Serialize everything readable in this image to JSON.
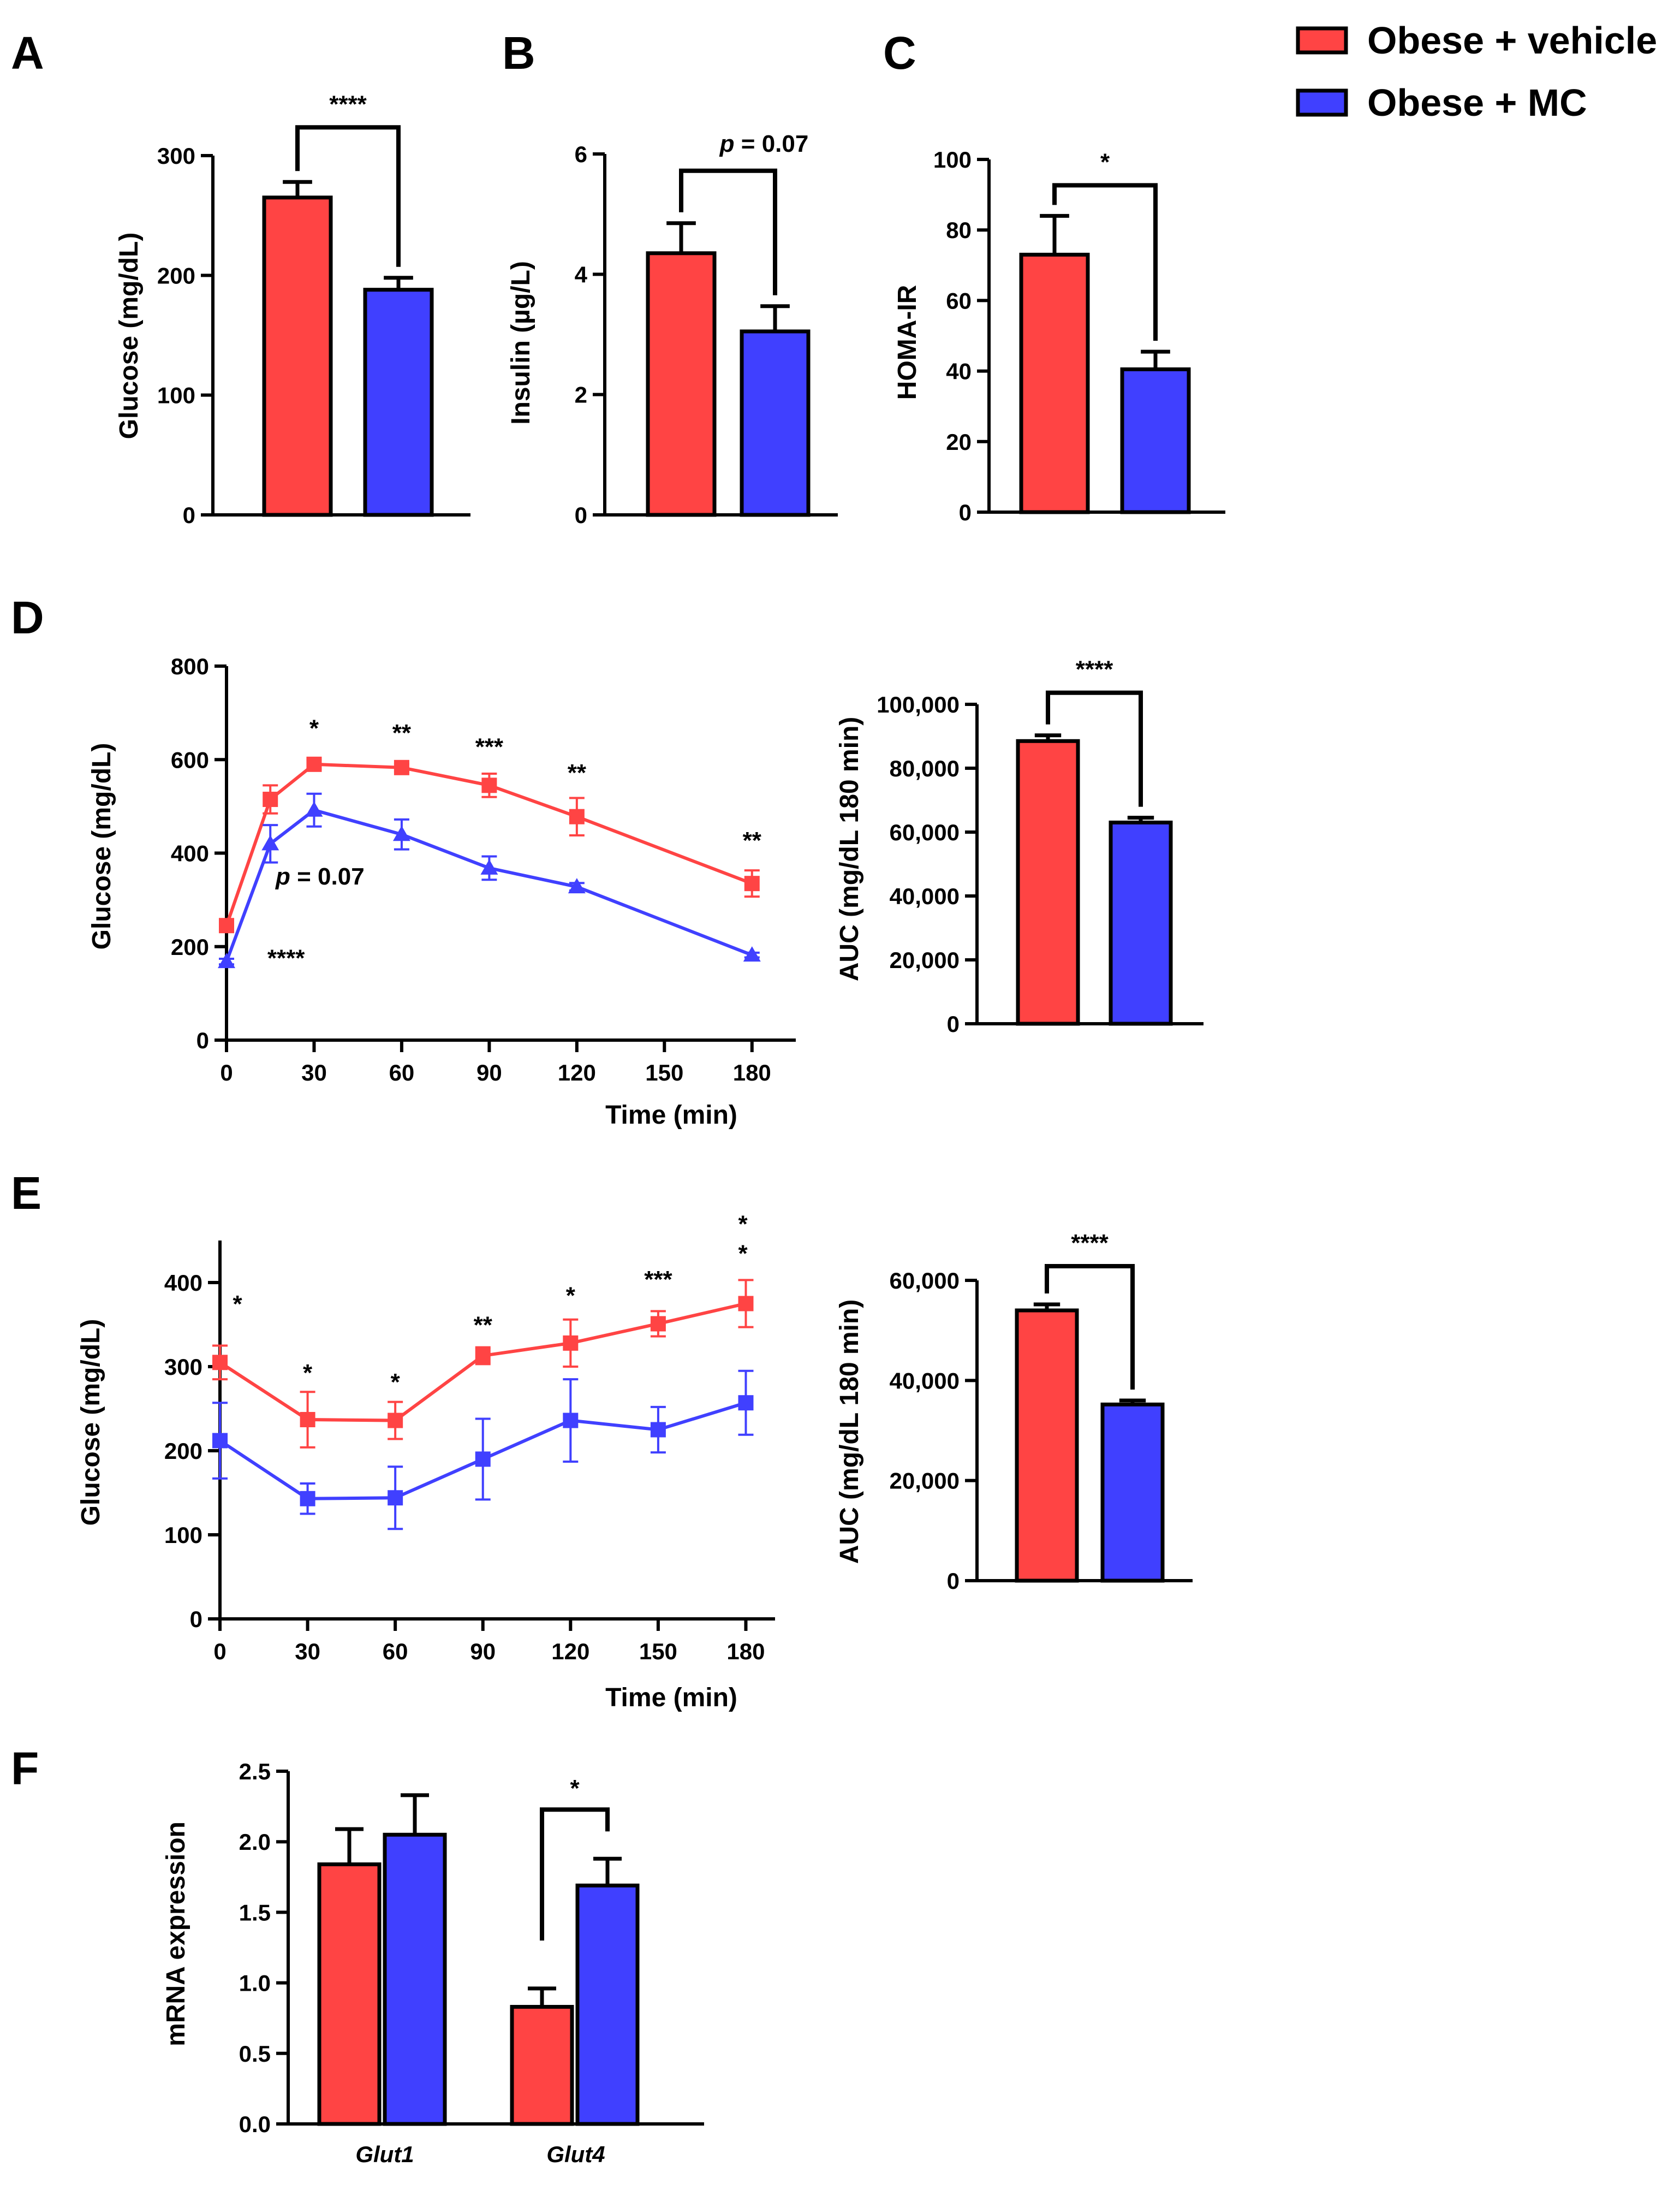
{
  "colors": {
    "vehicle": "#ff4444",
    "mc": "#4040ff",
    "axis": "#000000"
  },
  "legend": {
    "entries": [
      {
        "label": "Obese + vehicle",
        "color": "#ff4444"
      },
      {
        "label": "Obese + MC",
        "color": "#4040ff"
      }
    ]
  },
  "chart_data": [
    {
      "id": "A",
      "panel_label": "A",
      "type": "bar",
      "ylabel": "Glucose (mg/dL)",
      "ylim": [
        0,
        300
      ],
      "yticks": [
        0,
        100,
        200,
        300
      ],
      "tick_labels": [
        "0",
        "100",
        "200",
        "300"
      ],
      "series": [
        {
          "name": "Obese + vehicle",
          "value": 265,
          "error": 13
        },
        {
          "name": "Obese + MC",
          "value": 188,
          "error": 10
        }
      ],
      "significance": "****"
    },
    {
      "id": "B",
      "panel_label": "B",
      "type": "bar",
      "ylabel": "Insulin (µg/L)",
      "ylim": [
        0,
        6
      ],
      "yticks": [
        0,
        2,
        4,
        6
      ],
      "tick_labels": [
        "0",
        "2",
        "4",
        "6"
      ],
      "series": [
        {
          "name": "Obese + vehicle",
          "value": 4.35,
          "error": 0.5
        },
        {
          "name": "Obese + MC",
          "value": 3.05,
          "error": 0.42
        }
      ],
      "significance_p": "p",
      "significance": " = 0.07"
    },
    {
      "id": "C",
      "panel_label": "C",
      "type": "bar",
      "ylabel": "HOMA-IR",
      "ylim": [
        0,
        100
      ],
      "yticks": [
        0,
        20,
        40,
        60,
        80,
        100
      ],
      "tick_labels": [
        "0",
        "20",
        "40",
        "60",
        "80",
        "100"
      ],
      "series": [
        {
          "name": "Obese + vehicle",
          "value": 73,
          "error": 11
        },
        {
          "name": "Obese + MC",
          "value": 40.5,
          "error": 5
        }
      ],
      "significance": "*"
    },
    {
      "id": "D-curve",
      "panel_label": "D",
      "type": "line",
      "ylabel": "Glucose (mg/dL)",
      "xlabel": "Time (min)",
      "xlim": [
        0,
        195
      ],
      "ylim": [
        0,
        800
      ],
      "xticks": [
        0,
        30,
        60,
        90,
        120,
        150,
        180
      ],
      "x_tick_labels": [
        "0",
        "30",
        "60",
        "90",
        "120",
        "150",
        "180"
      ],
      "yticks": [
        0,
        200,
        400,
        600,
        800
      ],
      "tick_labels": [
        "0",
        "200",
        "400",
        "600",
        "800"
      ],
      "series": [
        {
          "name": "Obese + vehicle",
          "marker": "square",
          "x": [
            0,
            15,
            30,
            60,
            90,
            120,
            180
          ],
          "y": [
            245,
            515,
            590,
            583,
            545,
            478,
            335
          ],
          "err": [
            8,
            30,
            10,
            8,
            25,
            40,
            28
          ]
        },
        {
          "name": "Obese + MC",
          "marker": "triangle",
          "x": [
            0,
            15,
            30,
            60,
            90,
            120,
            180
          ],
          "y": [
            168,
            420,
            492,
            440,
            368,
            328,
            182
          ],
          "err": [
            6,
            40,
            35,
            32,
            25,
            8,
            5
          ]
        }
      ],
      "annotations": [
        {
          "text": "*",
          "x": 30,
          "y": 650
        },
        {
          "text": "**",
          "x": 60,
          "y": 640
        },
        {
          "text": "***",
          "x": 90,
          "y": 610
        },
        {
          "text": "**",
          "x": 120,
          "y": 555
        },
        {
          "text": "**",
          "x": 180,
          "y": 410
        },
        {
          "text": "****",
          "x": 14,
          "y": 158
        }
      ],
      "p_annotation": {
        "p": "p",
        "rest": " = 0.07",
        "x": 17,
        "y": 345
      }
    },
    {
      "id": "D-auc",
      "type": "bar",
      "ylabel": "AUC (mg/dL 180 min)",
      "ylim": [
        0,
        100000
      ],
      "yticks": [
        0,
        20000,
        40000,
        60000,
        80000,
        100000
      ],
      "tick_labels": [
        "0",
        "20,000",
        "40,000",
        "60,000",
        "80,000",
        "100,000"
      ],
      "series": [
        {
          "name": "Obese + vehicle",
          "value": 88500,
          "error": 1800
        },
        {
          "name": "Obese + MC",
          "value": 63000,
          "error": 1500
        }
      ],
      "significance": "****"
    },
    {
      "id": "E-curve",
      "panel_label": "E",
      "type": "line",
      "ylabel": "Glucose (mg/dL)",
      "xlabel": "Time (min)",
      "xlim": [
        0,
        190
      ],
      "ylim": [
        0,
        450
      ],
      "xticks": [
        0,
        30,
        60,
        90,
        120,
        150,
        180
      ],
      "x_tick_labels": [
        "0",
        "30",
        "60",
        "90",
        "120",
        "150",
        "180"
      ],
      "yticks": [
        0,
        100,
        200,
        300,
        400
      ],
      "tick_labels": [
        "0",
        "100",
        "200",
        "300",
        "400"
      ],
      "series": [
        {
          "name": "Obese + vehicle",
          "marker": "square",
          "x": [
            0,
            30,
            60,
            90,
            120,
            150,
            180
          ],
          "y": [
            305,
            237,
            236,
            313,
            328,
            351,
            375
          ],
          "err": [
            20,
            33,
            22,
            10,
            28,
            15,
            28
          ]
        },
        {
          "name": "Obese + MC",
          "marker": "square",
          "x": [
            0,
            30,
            60,
            90,
            120,
            150,
            180
          ],
          "y": [
            212,
            143,
            144,
            190,
            236,
            225,
            257
          ],
          "err": [
            45,
            18,
            37,
            48,
            49,
            27,
            38
          ]
        }
      ],
      "annotations": [
        {
          "text": "*",
          "x": 6,
          "y": 365
        },
        {
          "text": "*",
          "x": 30,
          "y": 283
        },
        {
          "text": "*",
          "x": 60,
          "y": 272
        },
        {
          "text": "**",
          "x": 90,
          "y": 340
        },
        {
          "text": "*",
          "x": 120,
          "y": 375
        },
        {
          "text": "***",
          "x": 150,
          "y": 394
        },
        {
          "text": "*",
          "x": 179,
          "y": 425
        },
        {
          "text": "*",
          "x": 179,
          "y": 460
        }
      ]
    },
    {
      "id": "E-auc",
      "type": "bar",
      "ylabel": "AUC (mg/dL 180 min)",
      "ylim": [
        0,
        60000
      ],
      "yticks": [
        0,
        20000,
        40000,
        60000
      ],
      "tick_labels": [
        "0",
        "20,000",
        "40,000",
        "60,000"
      ],
      "series": [
        {
          "name": "Obese + vehicle",
          "value": 54000,
          "error": 1200
        },
        {
          "name": "Obese + MC",
          "value": 35200,
          "error": 800
        }
      ],
      "significance": "****"
    },
    {
      "id": "F",
      "panel_label": "F",
      "type": "bar",
      "ylabel": "mRNA expression",
      "ylim": [
        0,
        2.5
      ],
      "yticks": [
        0,
        0.5,
        1.0,
        1.5,
        2.0,
        2.5
      ],
      "tick_labels": [
        "0.0",
        "0.5",
        "1.0",
        "1.5",
        "2.0",
        "2.5"
      ],
      "categories": [
        "Glut1",
        "Glut4"
      ],
      "series": [
        {
          "name": "Obese + vehicle",
          "values": [
            1.84,
            0.83
          ],
          "errors": [
            0.25,
            0.13
          ]
        },
        {
          "name": "Obese + MC",
          "values": [
            2.05,
            1.69
          ],
          "errors": [
            0.28,
            0.19
          ]
        }
      ],
      "significance": "*"
    }
  ]
}
